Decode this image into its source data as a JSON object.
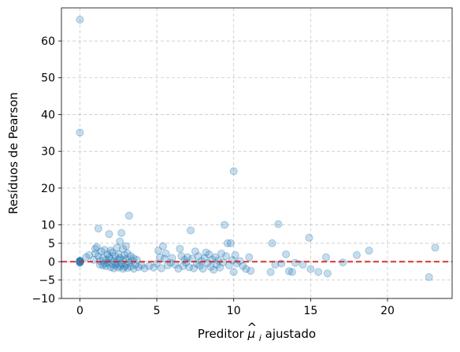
{
  "chart_data": {
    "type": "scatter",
    "title": "",
    "xlabel_prefix": "Preditor ",
    "xlabel_symbol": "μ",
    "xlabel_hat": "^",
    "xlabel_subscript": "i",
    "xlabel_suffix": " ajustado",
    "ylabel": "Resíduos de Pearson",
    "xlim": [
      -1.2,
      24.2
    ],
    "ylim": [
      -10,
      69
    ],
    "xticks": [
      0,
      5,
      10,
      15,
      20
    ],
    "yticks": [
      -10,
      -5,
      0,
      5,
      10,
      20,
      30,
      40,
      50,
      60
    ],
    "xtick_labels": [
      "0",
      "5",
      "10",
      "15",
      "20"
    ],
    "ytick_labels": [
      "−10",
      "−5",
      "0",
      "5",
      "10",
      "20",
      "30",
      "40",
      "50",
      "60"
    ],
    "grid": true,
    "point_color": "#1f77b4",
    "point_alpha": 0.25,
    "reference_line": {
      "y": 0,
      "color": "#d62728",
      "style": "dashed"
    },
    "points": [
      [
        0,
        65.8
      ],
      [
        0,
        35.1
      ],
      [
        0,
        0.3
      ],
      [
        0,
        -0.2
      ],
      [
        0,
        0.1
      ],
      [
        0,
        0
      ],
      [
        0,
        -0.1
      ],
      [
        0,
        0.2
      ],
      [
        0,
        -0.3
      ],
      [
        0,
        0.1
      ],
      [
        0.4,
        1.2
      ],
      [
        0.6,
        1.8
      ],
      [
        0.9,
        0.5
      ],
      [
        1.0,
        3.5
      ],
      [
        1.0,
        2.2
      ],
      [
        1.1,
        4.0
      ],
      [
        1.2,
        9.0
      ],
      [
        1.2,
        1.5
      ],
      [
        1.3,
        0.2
      ],
      [
        1.3,
        -0.8
      ],
      [
        1.4,
        2.8
      ],
      [
        1.5,
        -1.0
      ],
      [
        1.5,
        1.0
      ],
      [
        1.6,
        3.2
      ],
      [
        1.6,
        -0.5
      ],
      [
        1.7,
        0.5
      ],
      [
        1.7,
        -1.2
      ],
      [
        1.8,
        2.0
      ],
      [
        1.8,
        -0.3
      ],
      [
        1.9,
        7.5
      ],
      [
        1.9,
        1.2
      ],
      [
        2.0,
        -1.5
      ],
      [
        2.0,
        0.8
      ],
      [
        2.0,
        3.0
      ],
      [
        2.1,
        -0.7
      ],
      [
        2.1,
        2.5
      ],
      [
        2.2,
        -1.8
      ],
      [
        2.2,
        0.2
      ],
      [
        2.3,
        1.5
      ],
      [
        2.3,
        -1.0
      ],
      [
        2.4,
        3.8
      ],
      [
        2.4,
        -0.4
      ],
      [
        2.5,
        0.6
      ],
      [
        2.5,
        -1.6
      ],
      [
        2.5,
        2.0
      ],
      [
        2.6,
        5.5
      ],
      [
        2.6,
        -1.2
      ],
      [
        2.6,
        1.0
      ],
      [
        2.7,
        7.8
      ],
      [
        2.7,
        -0.6
      ],
      [
        2.8,
        3.5
      ],
      [
        2.8,
        -1.9
      ],
      [
        2.8,
        0.4
      ],
      [
        2.9,
        1.8
      ],
      [
        2.9,
        -1.4
      ],
      [
        3.0,
        4.2
      ],
      [
        3.0,
        -0.9
      ],
      [
        3.0,
        0.7
      ],
      [
        3.1,
        -1.7
      ],
      [
        3.1,
        2.2
      ],
      [
        3.2,
        12.5
      ],
      [
        3.2,
        -0.2
      ],
      [
        3.3,
        1.5
      ],
      [
        3.3,
        -1.3
      ],
      [
        3.4,
        0.3
      ],
      [
        3.5,
        -1.9
      ],
      [
        3.5,
        0.9
      ],
      [
        3.6,
        -0.8
      ],
      [
        3.7,
        0.5
      ],
      [
        3.8,
        -1.5
      ],
      [
        4.0,
        -1.0
      ],
      [
        4.2,
        -1.8
      ],
      [
        4.5,
        -1.2
      ],
      [
        4.8,
        -1.6
      ],
      [
        5.0,
        -0.5
      ],
      [
        5.1,
        3.0
      ],
      [
        5.2,
        1.2
      ],
      [
        5.3,
        -1.8
      ],
      [
        5.4,
        4.2
      ],
      [
        5.5,
        0.8
      ],
      [
        5.6,
        2.2
      ],
      [
        5.7,
        -1.0
      ],
      [
        5.9,
        -0.3
      ],
      [
        6.0,
        1.0
      ],
      [
        6.2,
        -0.8
      ],
      [
        6.4,
        -1.9
      ],
      [
        6.5,
        3.5
      ],
      [
        6.6,
        1.5
      ],
      [
        6.7,
        -1.2
      ],
      [
        6.8,
        0.5
      ],
      [
        6.9,
        -0.3
      ],
      [
        7.0,
        1.2
      ],
      [
        7.1,
        -1.5
      ],
      [
        7.2,
        8.5
      ],
      [
        7.3,
        0.8
      ],
      [
        7.4,
        -1.8
      ],
      [
        7.5,
        2.8
      ],
      [
        7.6,
        -0.6
      ],
      [
        7.7,
        1.5
      ],
      [
        7.8,
        -1.1
      ],
      [
        7.9,
        0.2
      ],
      [
        8.0,
        -1.9
      ],
      [
        8.1,
        1.0
      ],
      [
        8.2,
        2.5
      ],
      [
        8.3,
        -0.4
      ],
      [
        8.4,
        2.0
      ],
      [
        8.5,
        -1.4
      ],
      [
        8.6,
        0.6
      ],
      [
        8.7,
        -2.2
      ],
      [
        8.8,
        1.2
      ],
      [
        8.9,
        -0.8
      ],
      [
        9.0,
        0.3
      ],
      [
        9.1,
        -1.6
      ],
      [
        9.2,
        2.2
      ],
      [
        9.3,
        -0.2
      ],
      [
        9.4,
        10.0
      ],
      [
        9.5,
        1.5
      ],
      [
        9.6,
        5.0
      ],
      [
        9.7,
        -1.0
      ],
      [
        9.8,
        5.0
      ],
      [
        9.9,
        0.4
      ],
      [
        10.0,
        24.6
      ],
      [
        10.0,
        -2.8
      ],
      [
        10.1,
        1.8
      ],
      [
        10.2,
        -0.5
      ],
      [
        10.4,
        0.2
      ],
      [
        10.6,
        -1.2
      ],
      [
        10.8,
        -2.0
      ],
      [
        11.0,
        1.2
      ],
      [
        11.1,
        -2.5
      ],
      [
        12.4,
        -2.8
      ],
      [
        12.5,
        5.0
      ],
      [
        12.7,
        -0.8
      ],
      [
        12.9,
        10.2
      ],
      [
        13.1,
        -0.5
      ],
      [
        13.4,
        2.0
      ],
      [
        13.6,
        -2.6
      ],
      [
        13.8,
        -2.8
      ],
      [
        14.0,
        -0.3
      ],
      [
        14.5,
        -0.8
      ],
      [
        14.9,
        6.5
      ],
      [
        15.0,
        -2.0
      ],
      [
        15.5,
        -2.8
      ],
      [
        16.0,
        1.2
      ],
      [
        16.1,
        -3.2
      ],
      [
        17.1,
        -0.2
      ],
      [
        18.0,
        1.8
      ],
      [
        18.8,
        3.0
      ],
      [
        22.7,
        -4.2
      ],
      [
        23.1,
        3.8
      ]
    ]
  }
}
